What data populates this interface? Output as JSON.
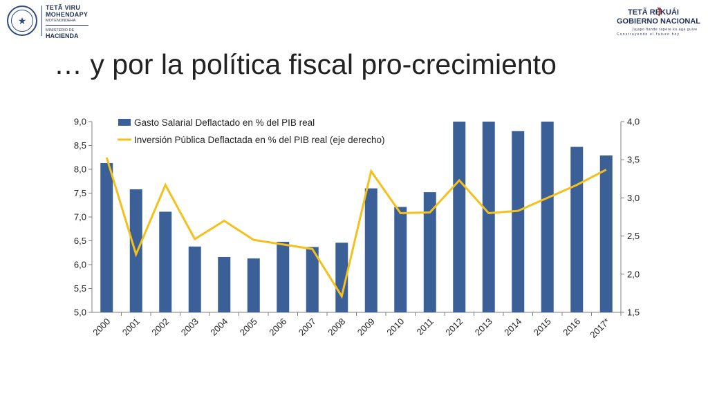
{
  "header": {
    "ministry_lines": [
      "TETÃ VIRU",
      "MOHENDAPY",
      "MOTENONDEHA",
      "MINISTERIO DE",
      "HACIENDA"
    ],
    "gov_lines": [
      "TETÃ REKUÁI",
      "GOBIERNO NACIONAL",
      "Jajapo ñande rapére ko ága guive",
      "Construyendo el futuro hoy"
    ]
  },
  "page_title": "… y por la política fiscal pro-crecimiento",
  "colors": {
    "bar": "#3a6097",
    "line": "#f5bf1c",
    "axis": "#7f7f7f",
    "flag_red": "#d52b1e",
    "flag_blue": "#1f2f55"
  },
  "chart_data": {
    "type": "bar",
    "categories": [
      "2000",
      "2001",
      "2002",
      "2003",
      "2004",
      "2005",
      "2006",
      "2007",
      "2008",
      "2009",
      "2010",
      "2011",
      "2012",
      "2013",
      "2014",
      "2015",
      "2016",
      "2017*"
    ],
    "series": [
      {
        "name": "Gasto Salarial Deflactado en % del PIB real",
        "type": "bar",
        "axis": "left",
        "values": [
          8.13,
          7.58,
          7.11,
          6.38,
          6.16,
          6.13,
          6.48,
          6.37,
          6.46,
          7.6,
          7.21,
          7.52,
          9.0,
          9.0,
          8.8,
          9.0,
          8.47,
          8.29
        ]
      },
      {
        "name": "Inversión Pública Deflactada en % del PIB real (eje derecho)",
        "type": "line",
        "axis": "right",
        "values": [
          3.53,
          2.26,
          3.17,
          2.46,
          2.7,
          2.45,
          2.39,
          2.33,
          1.71,
          3.35,
          2.8,
          2.81,
          3.23,
          2.8,
          2.83,
          3.0,
          3.17,
          3.37
        ]
      }
    ],
    "y_left": {
      "ylim": [
        5.0,
        9.0
      ],
      "ticks": [
        "5,0",
        "5,5",
        "6,0",
        "6,5",
        "7,0",
        "7,5",
        "8,0",
        "8,5",
        "9,0"
      ]
    },
    "y_right": {
      "ylim": [
        1.5,
        4.0
      ],
      "ticks": [
        "1,5",
        "2,0",
        "2,5",
        "3,0",
        "3,5",
        "4,0"
      ]
    },
    "legend_position": "top-left",
    "grid": false
  }
}
